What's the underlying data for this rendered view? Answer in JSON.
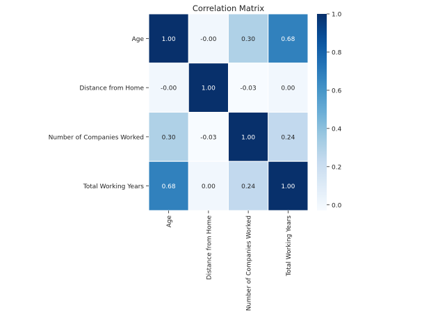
{
  "chart_data": {
    "type": "heatmap",
    "title": "Correlation Matrix",
    "row_labels": [
      "Age",
      "Distance from Home",
      "Number of Companies Worked",
      "Total Working Years"
    ],
    "col_labels": [
      "Age",
      "Distance from Home",
      "Number of Companies Worked",
      "Total Working Years"
    ],
    "values": [
      [
        1.0,
        -0.0,
        0.3,
        0.68
      ],
      [
        -0.0,
        1.0,
        -0.03,
        0.0
      ],
      [
        0.3,
        -0.03,
        1.0,
        0.24
      ],
      [
        0.68,
        0.0,
        0.24,
        1.0
      ]
    ],
    "annotations": [
      [
        "1.00",
        "-0.00",
        "0.30",
        "0.68"
      ],
      [
        "-0.00",
        "1.00",
        "-0.03",
        "0.00"
      ],
      [
        "0.30",
        "-0.03",
        "1.00",
        "0.24"
      ],
      [
        "0.68",
        "0.00",
        "0.24",
        "1.00"
      ]
    ],
    "colormap": "Blues",
    "vmin": -0.03,
    "vmax": 1.0,
    "colorbar_ticks": [
      0.0,
      0.2,
      0.4,
      0.6,
      0.8,
      1.0
    ],
    "colorbar_tick_labels": [
      "0.0",
      "0.2",
      "0.4",
      "0.6",
      "0.8",
      "1.0"
    ],
    "legend": "colorbar-right"
  }
}
